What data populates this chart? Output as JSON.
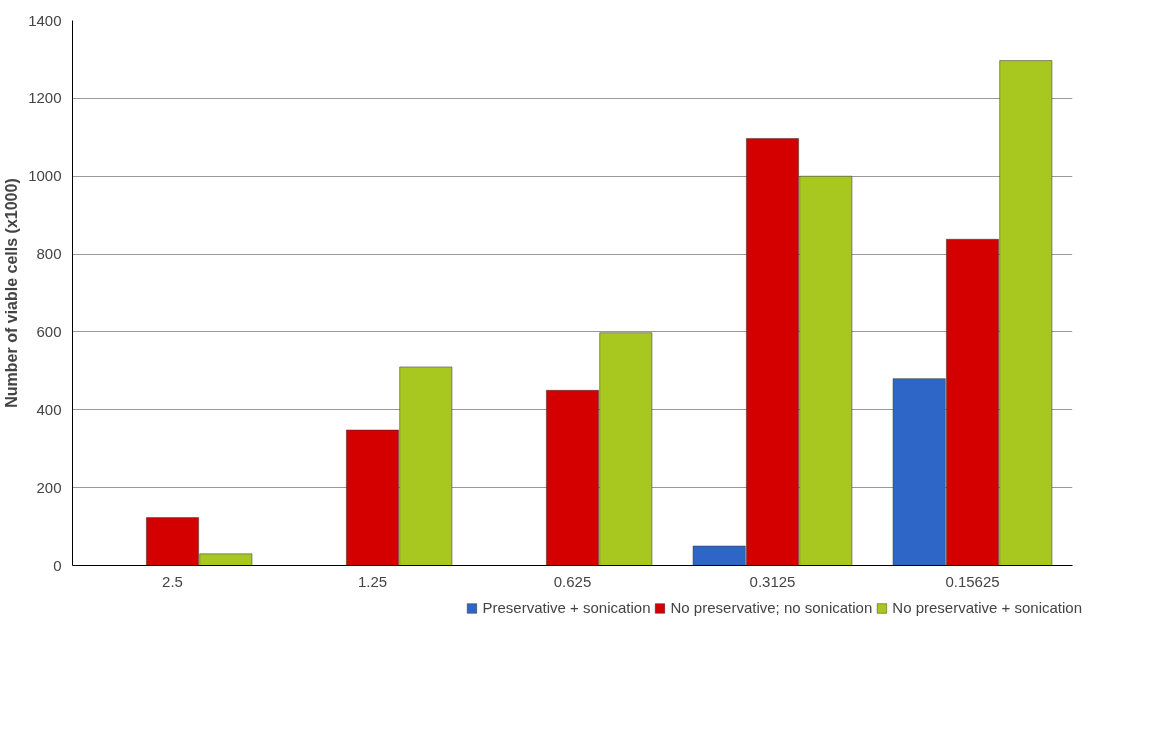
{
  "chart_data": {
    "type": "bar",
    "ylabel": "Number of viable cells (x1000)",
    "categories": [
      "2.5",
      "1.25",
      "0.625",
      "0.3125",
      "0.15625"
    ],
    "series": [
      {
        "name": "Preservative + sonication",
        "color": "#2e66c8",
        "values": [
          null,
          null,
          null,
          50,
          480
        ]
      },
      {
        "name": "No preservative; no sonication",
        "color": "#d40000",
        "values": [
          123,
          348,
          450,
          1097,
          838
        ]
      },
      {
        "name": "No preservative + sonication",
        "color": "#a8c820",
        "values": [
          30,
          510,
          598,
          1000,
          1297
        ]
      }
    ],
    "ylim": [
      0,
      1400
    ],
    "yticks": [
      0,
      200,
      400,
      600,
      800,
      1000,
      1200,
      1400
    ],
    "grid": "y",
    "legend": "bottom"
  }
}
